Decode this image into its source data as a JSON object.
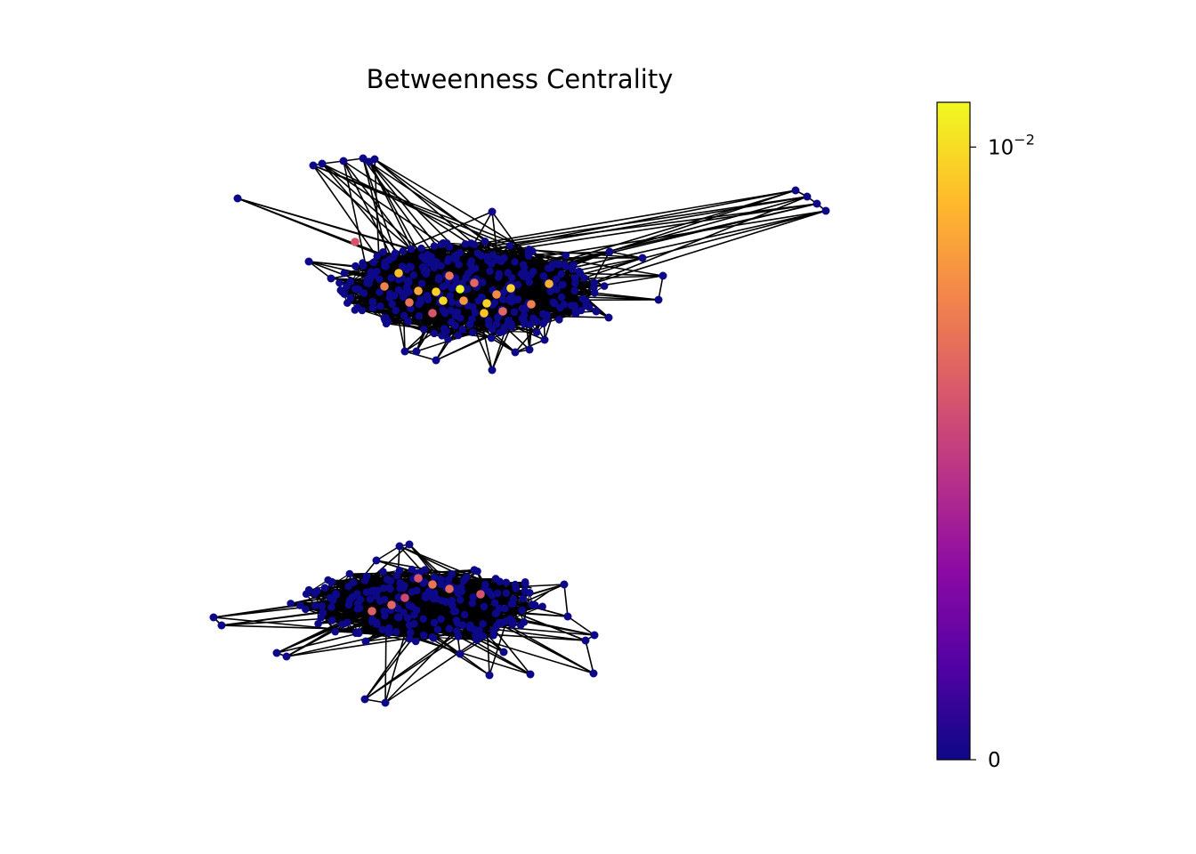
{
  "chart_data": {
    "type": "network",
    "title": "Betweenness Centrality",
    "colormap": {
      "name": "plasma",
      "stops": [
        "#0d0887",
        "#5302a3",
        "#8b0aa5",
        "#b83289",
        "#db5c68",
        "#f48849",
        "#febd2a",
        "#f0f921"
      ],
      "ticks": [
        {
          "base": "0",
          "exp": "",
          "value": 0
        },
        {
          "base": "10",
          "exp": "−2",
          "value": 0.01
        }
      ],
      "vmin": 0,
      "vmax": 0.014,
      "scale": "symlog"
    },
    "node_color_default": "#0d0887",
    "edge_color": "#000000",
    "components": [
      {
        "name": "upper",
        "approx_node_count": 300,
        "highlighted_nodes": [
          {
            "x": 517,
            "y": 325,
            "bc": 0.014
          },
          {
            "x": 498,
            "y": 338,
            "bc": 0.0095
          },
          {
            "x": 547,
            "y": 341,
            "bc": 0.009
          },
          {
            "x": 490,
            "y": 328,
            "bc": 0.0085
          },
          {
            "x": 574,
            "y": 324,
            "bc": 0.009
          },
          {
            "x": 544,
            "y": 352,
            "bc": 0.0075
          },
          {
            "x": 448,
            "y": 307,
            "bc": 0.007
          },
          {
            "x": 617,
            "y": 319,
            "bc": 0.006
          },
          {
            "x": 470,
            "y": 327,
            "bc": 0.005
          },
          {
            "x": 521,
            "y": 338,
            "bc": 0.004
          },
          {
            "x": 558,
            "y": 331,
            "bc": 0.0035
          },
          {
            "x": 432,
            "y": 322,
            "bc": 0.003
          },
          {
            "x": 597,
            "y": 342,
            "bc": 0.003
          },
          {
            "x": 505,
            "y": 310,
            "bc": 0.0025
          },
          {
            "x": 460,
            "y": 340,
            "bc": 0.0025
          },
          {
            "x": 533,
            "y": 318,
            "bc": 0.002
          },
          {
            "x": 565,
            "y": 350,
            "bc": 0.002
          },
          {
            "x": 399,
            "y": 272,
            "bc": 0.0015
          },
          {
            "x": 486,
            "y": 352,
            "bc": 0.0015
          }
        ],
        "peripheral_nodes": [
          [
            267,
            223
          ],
          [
            352,
            186
          ],
          [
            362,
            184
          ],
          [
            386,
            181
          ],
          [
            408,
            178
          ],
          [
            421,
            179
          ],
          [
            415,
            182
          ],
          [
            553,
            238
          ],
          [
            894,
            214
          ],
          [
            907,
            221
          ],
          [
            918,
            229
          ],
          [
            928,
            237
          ],
          [
            745,
            310
          ],
          [
            740,
            337
          ],
          [
            722,
            290
          ],
          [
            685,
            283
          ],
          [
            553,
            416
          ],
          [
            490,
            405
          ],
          [
            455,
            395
          ],
          [
            468,
            395
          ],
          [
            347,
            294
          ],
          [
            372,
            313
          ],
          [
            419,
            346
          ],
          [
            612,
            382
          ],
          [
            579,
            396
          ],
          [
            595,
            393
          ],
          [
            684,
            357
          ],
          [
            670,
            350
          ]
        ],
        "core": {
          "cx": 530,
          "cy": 325,
          "rx": 150,
          "ry": 55
        },
        "hub_nodes": [
          [
            517,
            325
          ],
          [
            498,
            338
          ],
          [
            547,
            341
          ],
          [
            574,
            324
          ],
          [
            448,
            307
          ],
          [
            430,
            300
          ],
          [
            560,
            310
          ],
          [
            600,
            300
          ],
          [
            480,
            360
          ],
          [
            520,
            360
          ],
          [
            620,
            340
          ],
          [
            650,
            330
          ],
          [
            460,
            290
          ],
          [
            580,
            280
          ]
        ]
      },
      {
        "name": "lower",
        "approx_node_count": 200,
        "highlighted_nodes": [
          {
            "x": 486,
            "y": 657,
            "bc": 0.0025
          },
          {
            "x": 505,
            "y": 662,
            "bc": 0.002
          },
          {
            "x": 440,
            "y": 680,
            "bc": 0.002
          },
          {
            "x": 418,
            "y": 687,
            "bc": 0.0018
          },
          {
            "x": 470,
            "y": 650,
            "bc": 0.0015
          },
          {
            "x": 540,
            "y": 668,
            "bc": 0.0015
          },
          {
            "x": 455,
            "y": 672,
            "bc": 0.0012
          }
        ],
        "peripheral_nodes": [
          [
            240,
            694
          ],
          [
            249,
            703
          ],
          [
            311,
            734
          ],
          [
            322,
            738
          ],
          [
            410,
            786
          ],
          [
            433,
            790
          ],
          [
            550,
            759
          ],
          [
            596,
            758
          ],
          [
            667,
            757
          ],
          [
            658,
            720
          ],
          [
            668,
            714
          ],
          [
            638,
            693
          ],
          [
            634,
            657
          ],
          [
            460,
            612
          ],
          [
            449,
            614
          ],
          [
            423,
            630
          ],
          [
            411,
            721
          ],
          [
            517,
            735
          ],
          [
            566,
            733
          ]
        ],
        "core": {
          "cx": 470,
          "cy": 678,
          "rx": 140,
          "ry": 42
        },
        "hub_nodes": [
          [
            486,
            657
          ],
          [
            505,
            662
          ],
          [
            440,
            680
          ],
          [
            418,
            687
          ],
          [
            470,
            650
          ],
          [
            540,
            668
          ],
          [
            455,
            672
          ],
          [
            520,
            690
          ],
          [
            430,
            700
          ],
          [
            580,
            680
          ],
          [
            600,
            665
          ],
          [
            400,
            660
          ],
          [
            490,
            710
          ],
          [
            550,
            705
          ]
        ]
      }
    ]
  }
}
